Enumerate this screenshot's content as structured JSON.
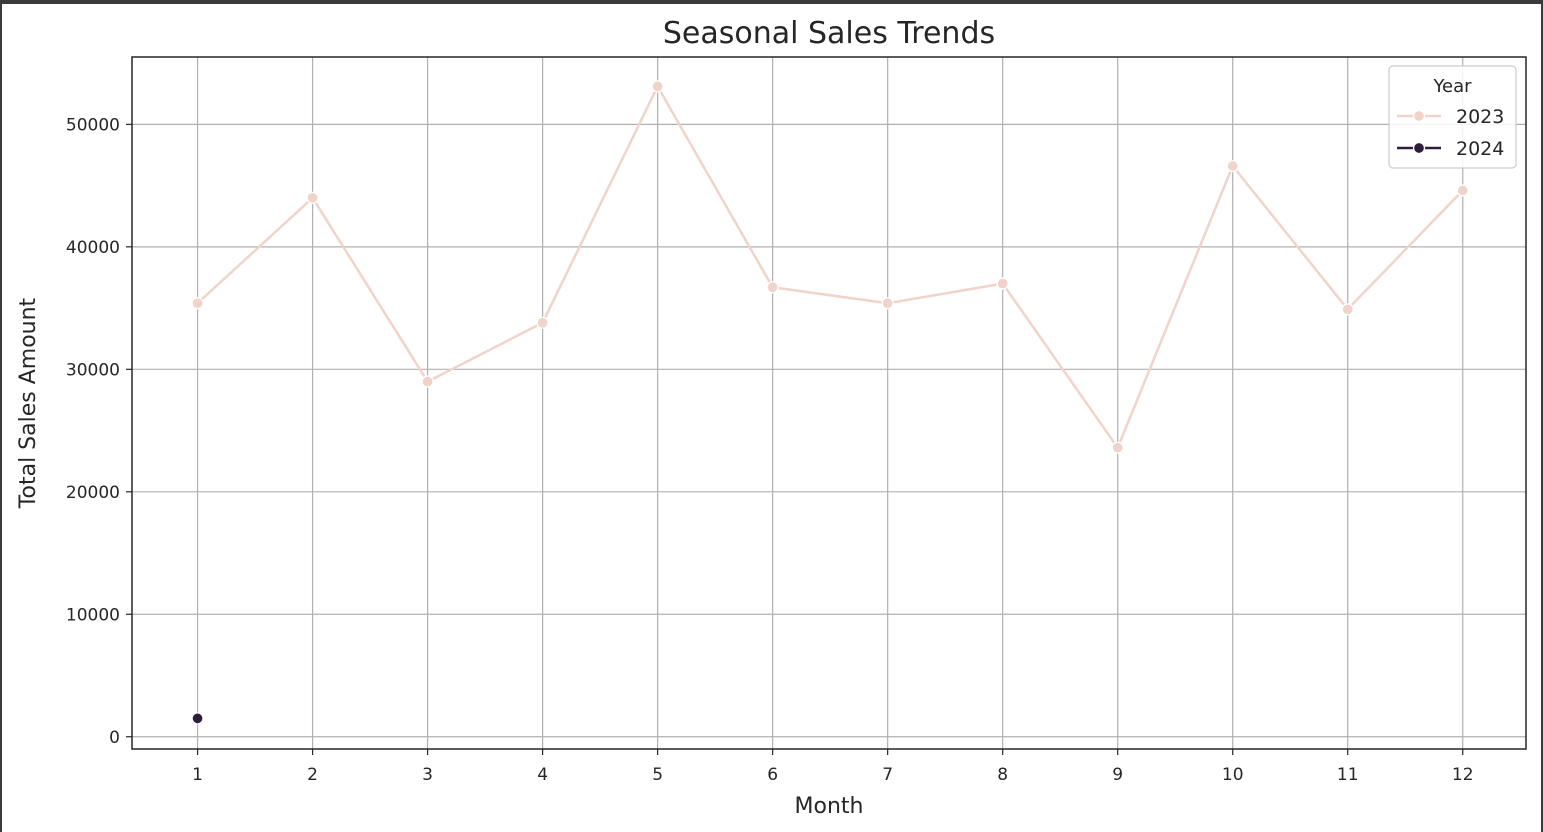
{
  "chart_data": {
    "type": "line",
    "title": "Seasonal Sales Trends",
    "xlabel": "Month",
    "ylabel": "Total Sales Amount",
    "x_ticks": [
      "1",
      "2",
      "3",
      "4",
      "5",
      "6",
      "7",
      "8",
      "9",
      "10",
      "11",
      "12"
    ],
    "y_ticks": [
      "0",
      "10000",
      "20000",
      "30000",
      "40000",
      "50000"
    ],
    "xlim": [
      0.43,
      12.55
    ],
    "ylim": [
      -1000,
      55500
    ],
    "grid": true,
    "legend": {
      "title": "Year",
      "placement": "top-right"
    },
    "series": [
      {
        "name": "2023",
        "color": "#f0d3c9",
        "x": [
          1,
          2,
          3,
          4,
          5,
          6,
          7,
          8,
          9,
          10,
          11,
          12
        ],
        "values": [
          35400,
          44000,
          29000,
          33800,
          53100,
          36700,
          35400,
          37000,
          23600,
          46600,
          34900,
          44600
        ]
      },
      {
        "name": "2024",
        "color": "#2d1e3e",
        "x": [
          1
        ],
        "values": [
          1500
        ]
      }
    ]
  }
}
